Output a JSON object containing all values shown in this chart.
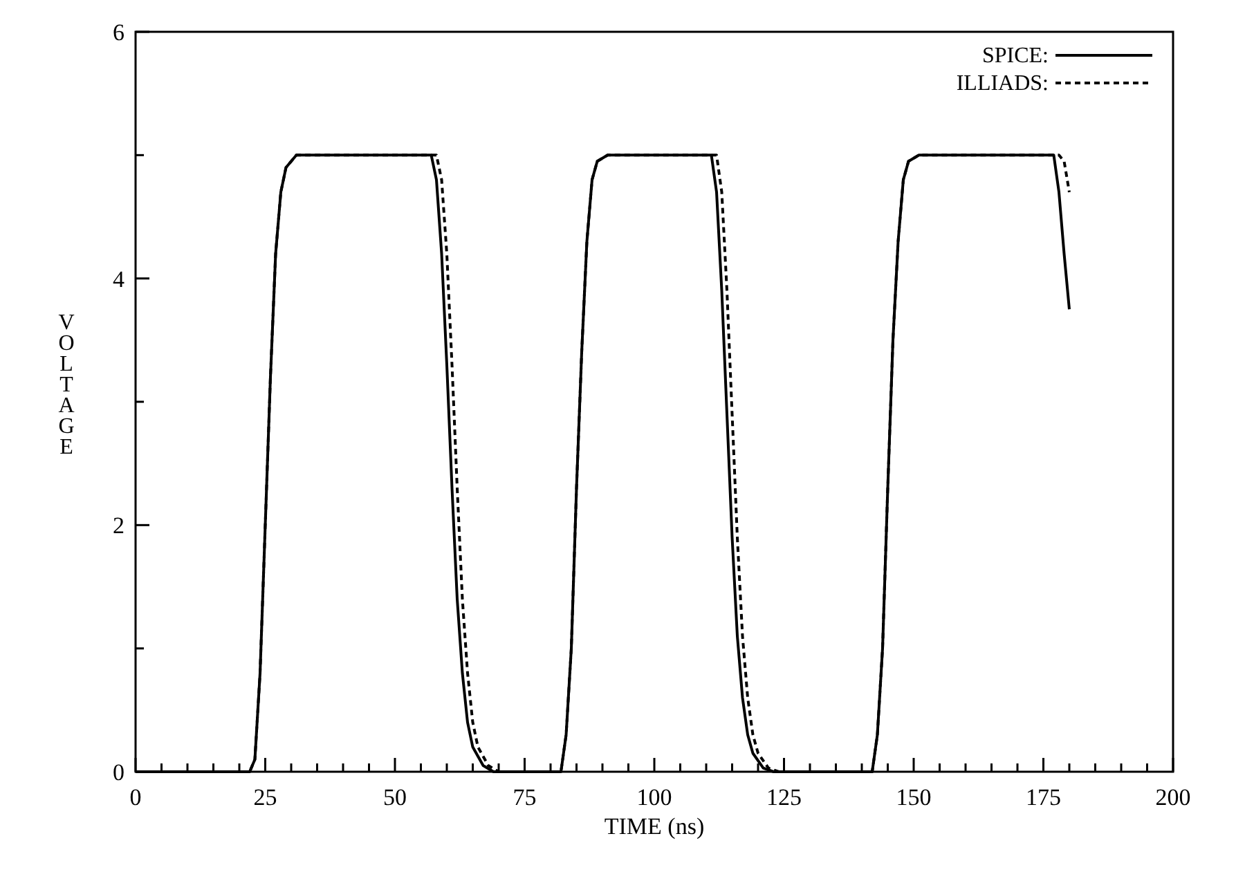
{
  "chart_data": {
    "type": "line",
    "xlabel": "TIME (ns)",
    "ylabel": "VOLTAGE",
    "xlim": [
      0,
      200
    ],
    "ylim": [
      0,
      6
    ],
    "xticks": [
      0,
      {
        "value": 5,
        "label": null
      },
      {
        "value": 10,
        "label": null
      },
      {
        "value": 15,
        "label": null
      },
      {
        "value": 20,
        "label": null
      },
      25,
      {
        "value": 30,
        "label": null
      },
      {
        "value": 35,
        "label": null
      },
      {
        "value": 40,
        "label": null
      },
      {
        "value": 45,
        "label": null
      },
      50,
      {
        "value": 55,
        "label": null
      },
      {
        "value": 60,
        "label": null
      },
      {
        "value": 65,
        "label": null
      },
      {
        "value": 70,
        "label": null
      },
      75,
      {
        "value": 80,
        "label": null
      },
      {
        "value": 85,
        "label": null
      },
      {
        "value": 90,
        "label": null
      },
      {
        "value": 95,
        "label": null
      },
      100,
      {
        "value": 105,
        "label": null
      },
      {
        "value": 110,
        "label": null
      },
      {
        "value": 115,
        "label": null
      },
      {
        "value": 120,
        "label": null
      },
      125,
      {
        "value": 130,
        "label": null
      },
      {
        "value": 135,
        "label": null
      },
      {
        "value": 140,
        "label": null
      },
      {
        "value": 145,
        "label": null
      },
      150,
      {
        "value": 155,
        "label": null
      },
      {
        "value": 160,
        "label": null
      },
      {
        "value": 165,
        "label": null
      },
      {
        "value": 170,
        "label": null
      },
      175,
      {
        "value": 180,
        "label": null
      },
      {
        "value": 185,
        "label": null
      },
      {
        "value": 190,
        "label": null
      },
      {
        "value": 195,
        "label": null
      },
      200
    ],
    "yticks": [
      0,
      {
        "value": 1,
        "label": null
      },
      2,
      {
        "value": 3,
        "label": null
      },
      4,
      {
        "value": 5,
        "label": null
      },
      6
    ],
    "legend": "top right",
    "grid": false,
    "marker": "none",
    "series": [
      {
        "name": "SPICE:",
        "color": "#000000",
        "line_style": "solid",
        "x": [
          0,
          22,
          23,
          24,
          25,
          26,
          27,
          28,
          29,
          31,
          57,
          58,
          59,
          60,
          61,
          62,
          63,
          64,
          65,
          67,
          69,
          82,
          83,
          84,
          85,
          86,
          87,
          88,
          89,
          91,
          111,
          112,
          113,
          114,
          115,
          116,
          117,
          118,
          119,
          121,
          123,
          142,
          143,
          144,
          145,
          146,
          147,
          148,
          149,
          151,
          177,
          178,
          179,
          180
        ],
        "values": [
          0,
          0,
          0.1,
          0.8,
          2,
          3.2,
          4.2,
          4.7,
          4.9,
          5,
          5,
          4.8,
          4.2,
          3.3,
          2.3,
          1.4,
          0.8,
          0.4,
          0.2,
          0.05,
          0,
          0,
          0.3,
          1,
          2.3,
          3.4,
          4.3,
          4.8,
          4.95,
          5,
          5,
          4.7,
          3.9,
          2.9,
          1.9,
          1.1,
          0.6,
          0.3,
          0.15,
          0.03,
          0,
          0,
          0.3,
          1,
          2.3,
          3.5,
          4.3,
          4.8,
          4.95,
          5,
          5,
          4.7,
          4.2,
          3.75
        ]
      },
      {
        "name": "ILLIADS:",
        "color": "#000000",
        "line_style": "dashed",
        "x": [
          0,
          22,
          23,
          24,
          25,
          26,
          27,
          28,
          29,
          31,
          58,
          59,
          60,
          61,
          62,
          63,
          64,
          65,
          66,
          68,
          70,
          82,
          83,
          84,
          85,
          86,
          87,
          88,
          89,
          91,
          112,
          113,
          114,
          115,
          116,
          117,
          118,
          119,
          120,
          122,
          124,
          142,
          143,
          144,
          145,
          146,
          147,
          148,
          149,
          151,
          178,
          179,
          180
        ],
        "values": [
          0,
          0,
          0.1,
          0.8,
          2,
          3.2,
          4.2,
          4.7,
          4.9,
          5,
          5,
          4.8,
          4.2,
          3.3,
          2.3,
          1.4,
          0.8,
          0.4,
          0.2,
          0.05,
          0,
          0,
          0.3,
          1,
          2.3,
          3.4,
          4.3,
          4.8,
          4.95,
          5,
          5,
          4.7,
          3.9,
          2.9,
          1.9,
          1.1,
          0.6,
          0.3,
          0.15,
          0.03,
          0,
          0,
          0.3,
          1,
          2.3,
          3.5,
          4.3,
          4.8,
          4.95,
          5,
          5,
          4.95,
          4.7
        ]
      }
    ]
  }
}
